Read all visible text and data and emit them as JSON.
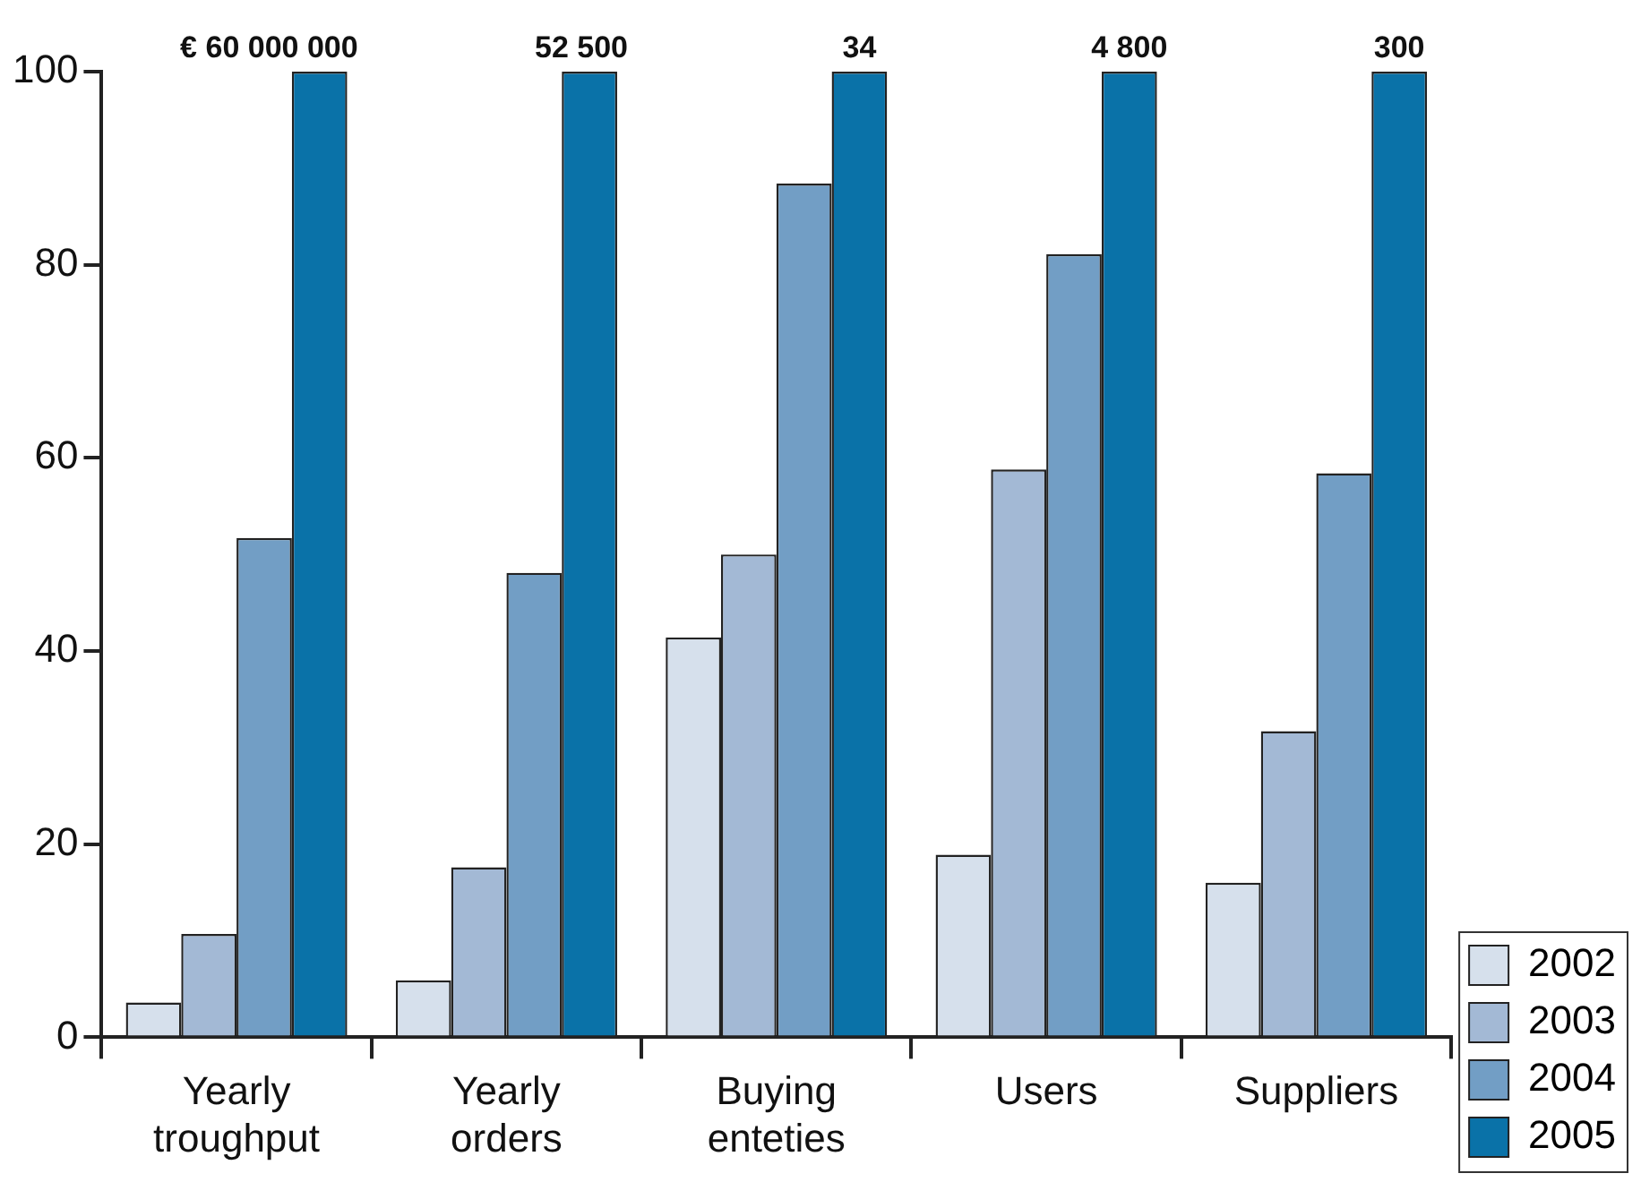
{
  "chart_data": {
    "type": "bar",
    "categories": [
      "Yearly troughput",
      "Yearly orders",
      "Buying enteties",
      "Users",
      "Suppliers"
    ],
    "series": [
      {
        "name": "2002",
        "color": "#d6e0ec",
        "values": [
          3.6,
          5.9,
          41.4,
          18.9,
          16
        ]
      },
      {
        "name": "2003",
        "color": "#a3b9d5",
        "values": [
          10.7,
          17.6,
          50,
          58.8,
          31.7
        ]
      },
      {
        "name": "2004",
        "color": "#729ec5",
        "values": [
          51.7,
          48.1,
          88.4,
          81.1,
          58.4
        ]
      },
      {
        "name": "2005",
        "color": "#0a72a8",
        "values": [
          100,
          100,
          100,
          100,
          100
        ]
      }
    ],
    "annotations": [
      "€ 60 000 000",
      "52 500",
      "34",
      "4 800",
      "300"
    ],
    "ylim": [
      0,
      100
    ],
    "yticks": [
      0,
      20,
      40,
      60,
      80,
      100
    ],
    "grid": false,
    "legend": "bottom right"
  }
}
